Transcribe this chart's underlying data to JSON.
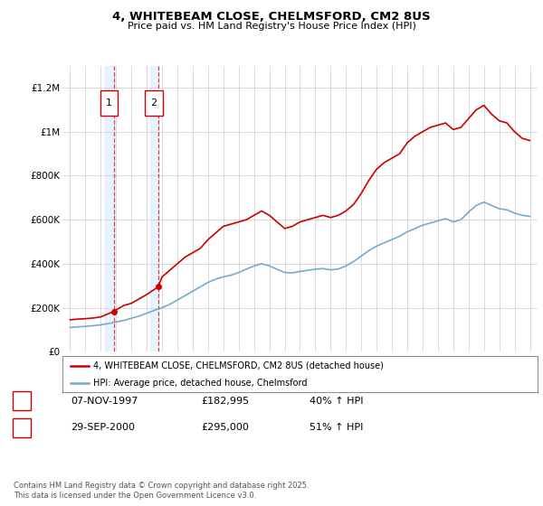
{
  "title": "4, WHITEBEAM CLOSE, CHELMSFORD, CM2 8US",
  "subtitle": "Price paid vs. HM Land Registry's House Price Index (HPI)",
  "red_label": "4, WHITEBEAM CLOSE, CHELMSFORD, CM2 8US (detached house)",
  "blue_label": "HPI: Average price, detached house, Chelmsford",
  "footer": "Contains HM Land Registry data © Crown copyright and database right 2025.\nThis data is licensed under the Open Government Licence v3.0.",
  "purchases": [
    {
      "num": 1,
      "date": "07-NOV-1997",
      "price": 182995,
      "pct": "40% ↑ HPI"
    },
    {
      "num": 2,
      "date": "29-SEP-2000",
      "price": 295000,
      "pct": "51% ↑ HPI"
    }
  ],
  "purchase_years": [
    1997.85,
    2000.75
  ],
  "purchase_prices": [
    182995,
    295000
  ],
  "ylim": [
    0,
    1300000
  ],
  "xlim_start": 1994.5,
  "xlim_end": 2025.5,
  "red_color": "#cc0000",
  "blue_color": "#77aacc",
  "marker_color": "#cc0000",
  "vline_color": "#cc4444",
  "shade_color": "#ddeeff",
  "grid_color": "#cccccc",
  "bg_color": "#ffffff",
  "yticks": [
    0,
    200000,
    400000,
    600000,
    800000,
    1000000,
    1200000
  ],
  "ytick_labels": [
    "£0",
    "£200K",
    "£400K",
    "£600K",
    "£800K",
    "£1M",
    "£1.2M"
  ],
  "xticks": [
    1995,
    1996,
    1997,
    1998,
    1999,
    2000,
    2001,
    2002,
    2003,
    2004,
    2005,
    2006,
    2007,
    2008,
    2009,
    2010,
    2011,
    2012,
    2013,
    2014,
    2015,
    2016,
    2017,
    2018,
    2019,
    2020,
    2021,
    2022,
    2023,
    2024,
    2025
  ],
  "red_x": [
    1995,
    1995.5,
    1996,
    1996.5,
    1997,
    1997.85,
    1998,
    1998.5,
    1999,
    1999.5,
    2000,
    2000.75,
    2001,
    2001.5,
    2002,
    2002.5,
    2003,
    2003.5,
    2004,
    2004.5,
    2005,
    2005.5,
    2006,
    2006.5,
    2007,
    2007.5,
    2008,
    2008.5,
    2009,
    2009.5,
    2010,
    2010.5,
    2011,
    2011.5,
    2012,
    2012.5,
    2013,
    2013.5,
    2014,
    2014.5,
    2015,
    2015.5,
    2016,
    2016.5,
    2017,
    2017.5,
    2018,
    2018.5,
    2019,
    2019.5,
    2020,
    2020.5,
    2021,
    2021.5,
    2022,
    2022.5,
    2023,
    2023.5,
    2024,
    2024.5,
    2025
  ],
  "red_y": [
    145000,
    148000,
    150000,
    153000,
    158000,
    182995,
    190000,
    210000,
    220000,
    240000,
    260000,
    295000,
    340000,
    370000,
    400000,
    430000,
    450000,
    470000,
    510000,
    540000,
    570000,
    580000,
    590000,
    600000,
    620000,
    640000,
    620000,
    590000,
    560000,
    570000,
    590000,
    600000,
    610000,
    620000,
    610000,
    620000,
    640000,
    670000,
    720000,
    780000,
    830000,
    860000,
    880000,
    900000,
    950000,
    980000,
    1000000,
    1020000,
    1030000,
    1040000,
    1010000,
    1020000,
    1060000,
    1100000,
    1120000,
    1080000,
    1050000,
    1040000,
    1000000,
    970000,
    960000
  ],
  "blue_x": [
    1995,
    1995.5,
    1996,
    1996.5,
    1997,
    1997.5,
    1998,
    1998.5,
    1999,
    1999.5,
    2000,
    2000.5,
    2001,
    2001.5,
    2002,
    2002.5,
    2003,
    2003.5,
    2004,
    2004.5,
    2005,
    2005.5,
    2006,
    2006.5,
    2007,
    2007.5,
    2008,
    2008.5,
    2009,
    2009.5,
    2010,
    2010.5,
    2011,
    2011.5,
    2012,
    2012.5,
    2013,
    2013.5,
    2014,
    2014.5,
    2015,
    2015.5,
    2016,
    2016.5,
    2017,
    2017.5,
    2018,
    2018.5,
    2019,
    2019.5,
    2020,
    2020.5,
    2021,
    2021.5,
    2022,
    2022.5,
    2023,
    2023.5,
    2024,
    2024.5,
    2025
  ],
  "blue_y": [
    110000,
    113000,
    115000,
    118000,
    122000,
    128000,
    135000,
    142000,
    152000,
    162000,
    175000,
    188000,
    200000,
    215000,
    235000,
    255000,
    275000,
    295000,
    315000,
    330000,
    340000,
    348000,
    360000,
    375000,
    390000,
    400000,
    390000,
    375000,
    360000,
    358000,
    365000,
    370000,
    375000,
    378000,
    372000,
    376000,
    390000,
    410000,
    435000,
    460000,
    480000,
    495000,
    510000,
    525000,
    545000,
    560000,
    575000,
    585000,
    595000,
    605000,
    590000,
    600000,
    635000,
    665000,
    680000,
    665000,
    650000,
    645000,
    630000,
    620000,
    615000
  ]
}
